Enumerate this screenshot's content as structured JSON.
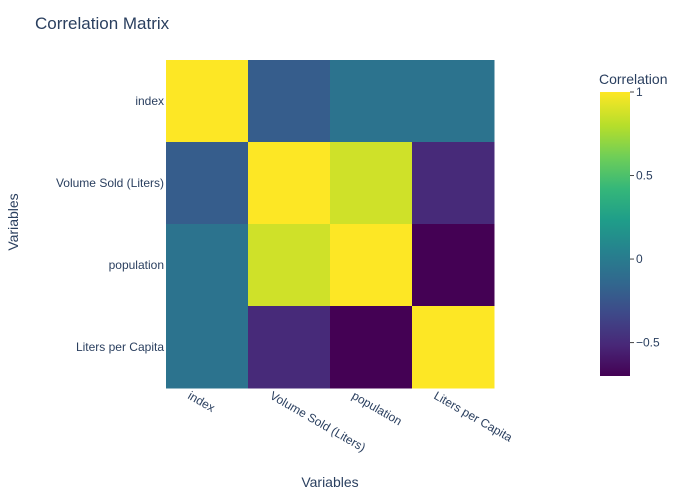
{
  "chart_data": {
    "type": "heatmap",
    "title": "Correlation Matrix",
    "xlabel": "Variables",
    "ylabel": "Variables",
    "x": [
      "index",
      "Volume Sold (Liters)",
      "population",
      "Liters per Capita"
    ],
    "y": [
      "index",
      "Volume Sold (Liters)",
      "population",
      "Liters per Capita"
    ],
    "z": [
      [
        1.0,
        -0.2,
        -0.05,
        -0.05
      ],
      [
        -0.2,
        1.0,
        0.88,
        -0.5
      ],
      [
        -0.05,
        0.88,
        1.0,
        -0.7
      ],
      [
        -0.05,
        -0.5,
        -0.7,
        1.0
      ]
    ],
    "colorscale": "Viridis",
    "zmin": -0.7,
    "zmax": 1.0,
    "colorbar": {
      "title": "Correlation",
      "ticks": [
        1,
        0.5,
        0,
        -0.5
      ],
      "ticklabels": [
        "1",
        "0.5",
        "0",
        "−0.5"
      ]
    },
    "grid": false
  }
}
